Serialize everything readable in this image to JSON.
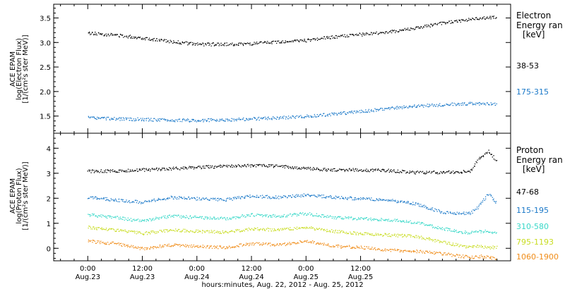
{
  "chart_data": [
    {
      "type": "scatter",
      "panel": "electron",
      "ylabel": [
        "ACE EPAM",
        "log(Electron Flux)",
        "[1/(cm²s ster MeV)]"
      ],
      "ylim": [
        1.15,
        3.78
      ],
      "yticks": [
        1.5,
        2.0,
        2.5,
        3.0,
        3.5
      ],
      "ytick_labels": [
        "1.5",
        "2.0",
        "2.5",
        "3.0",
        "3.5"
      ],
      "legend_title": [
        "Electron",
        "Energy ran",
        "[keV]"
      ],
      "series": [
        {
          "name": "38-53",
          "color": "#000000",
          "x": [
            0,
            6,
            12,
            18,
            24,
            30,
            36,
            42,
            48,
            54,
            60,
            66,
            72,
            78,
            84,
            90
          ],
          "y": [
            3.2,
            3.16,
            3.1,
            3.03,
            2.97,
            2.97,
            2.98,
            3.02,
            3.05,
            3.12,
            3.17,
            3.22,
            3.3,
            3.4,
            3.48,
            3.53
          ]
        },
        {
          "name": "175-315",
          "color": "#1a78c8",
          "x": [
            0,
            6,
            12,
            18,
            24,
            30,
            36,
            42,
            48,
            54,
            60,
            66,
            72,
            78,
            84,
            90
          ],
          "y": [
            1.47,
            1.45,
            1.44,
            1.42,
            1.42,
            1.43,
            1.45,
            1.47,
            1.5,
            1.55,
            1.6,
            1.66,
            1.71,
            1.74,
            1.76,
            1.75
          ]
        }
      ]
    },
    {
      "type": "scatter",
      "panel": "proton",
      "ylabel": [
        "ACE EPAM",
        "log(Proton Flux)",
        "[1/(cm²s ster MeV)]"
      ],
      "ylim": [
        -0.5,
        4.6
      ],
      "yticks": [
        0,
        1,
        2,
        3,
        4
      ],
      "ytick_labels": [
        "0",
        "1",
        "2",
        "3",
        "4"
      ],
      "legend_title": [
        "Proton",
        "Energy ran",
        "[keV]"
      ],
      "series": [
        {
          "name": "47-68",
          "color": "#000000",
          "x": [
            0,
            6,
            12,
            18,
            24,
            30,
            36,
            42,
            48,
            54,
            60,
            66,
            72,
            78,
            84,
            86,
            88,
            90
          ],
          "y": [
            3.1,
            3.1,
            3.15,
            3.2,
            3.25,
            3.3,
            3.32,
            3.3,
            3.2,
            3.15,
            3.15,
            3.12,
            3.05,
            3.05,
            3.1,
            3.6,
            3.9,
            3.5
          ]
        },
        {
          "name": "115-195",
          "color": "#1a78c8",
          "x": [
            0,
            6,
            12,
            18,
            24,
            30,
            36,
            42,
            48,
            54,
            60,
            66,
            72,
            78,
            84,
            86,
            88,
            90
          ],
          "y": [
            2.05,
            1.95,
            1.85,
            2.05,
            2.0,
            1.95,
            2.1,
            2.05,
            2.15,
            2.05,
            2.0,
            1.95,
            1.8,
            1.45,
            1.4,
            1.7,
            2.2,
            1.8
          ]
        },
        {
          "name": "310-580",
          "color": "#38d8c8",
          "x": [
            0,
            6,
            12,
            18,
            24,
            30,
            36,
            42,
            48,
            54,
            60,
            66,
            72,
            78,
            84,
            86,
            88,
            90
          ],
          "y": [
            1.35,
            1.25,
            1.1,
            1.3,
            1.25,
            1.2,
            1.35,
            1.3,
            1.4,
            1.25,
            1.2,
            1.15,
            1.05,
            0.8,
            0.62,
            0.7,
            0.68,
            0.65
          ]
        },
        {
          "name": "795-1193",
          "color": "#c8dc20",
          "x": [
            0,
            6,
            12,
            18,
            24,
            30,
            36,
            42,
            48,
            54,
            60,
            66,
            72,
            78,
            84,
            86,
            88,
            90
          ],
          "y": [
            0.85,
            0.75,
            0.6,
            0.75,
            0.7,
            0.65,
            0.8,
            0.75,
            0.85,
            0.7,
            0.6,
            0.55,
            0.5,
            0.25,
            0.05,
            0.1,
            0.05,
            0.05
          ]
        },
        {
          "name": "1060-1900",
          "color": "#f08c18",
          "x": [
            0,
            6,
            12,
            18,
            24,
            30,
            36,
            42,
            48,
            54,
            60,
            66,
            72,
            78,
            84,
            86,
            88,
            90
          ],
          "y": [
            0.3,
            0.2,
            0.0,
            0.15,
            0.1,
            0.05,
            0.2,
            0.15,
            0.3,
            0.1,
            0.05,
            -0.05,
            -0.1,
            -0.2,
            -0.35,
            -0.3,
            -0.35,
            -0.4
          ]
        }
      ]
    }
  ],
  "x_axis": {
    "xlim": [
      -7.5,
      93
    ],
    "ticks": [
      {
        "x": 0,
        "time": "0:00",
        "date": "Aug.23"
      },
      {
        "x": 12,
        "time": "12:00",
        "date": "Aug.23"
      },
      {
        "x": 24,
        "time": "0:00",
        "date": "Aug.24"
      },
      {
        "x": 36,
        "time": "12:00",
        "date": "Aug.24"
      },
      {
        "x": 48,
        "time": "0:00",
        "date": "Aug.25"
      },
      {
        "x": 60,
        "time": "12:00",
        "date": "Aug.25"
      }
    ],
    "minor_step": 3,
    "label": "hours:minutes, Aug. 22, 2012 - Aug. 25, 2012"
  }
}
